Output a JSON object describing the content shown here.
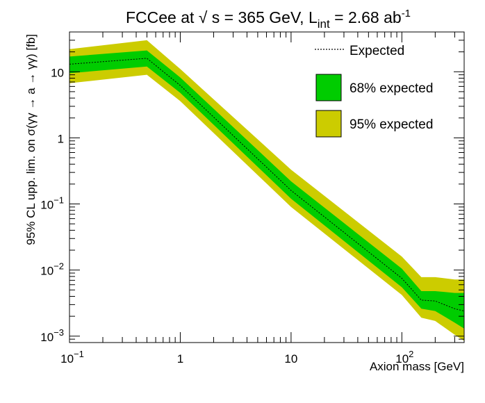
{
  "chart_data": {
    "type": "area",
    "title_main": "FCCee at √ s = 365 GeV, L",
    "title_sub": "int",
    "title_mid": " = 2.68 ab",
    "title_sup": "-1",
    "xlabel": "Axion mass [GeV]",
    "ylabel": "95% CL upp. lim. on σ(γγ → a → γγ) [fb]",
    "xscale": "log",
    "yscale": "log",
    "xlim": [
      0.1,
      365
    ],
    "ylim": [
      0.0008,
      40
    ],
    "x_ticks": [
      {
        "value": 0.1,
        "base": "10",
        "exp": "−1"
      },
      {
        "value": 1,
        "base": "1",
        "exp": ""
      },
      {
        "value": 10,
        "base": "10",
        "exp": ""
      },
      {
        "value": 100,
        "base": "10",
        "exp": "2"
      }
    ],
    "y_ticks": [
      {
        "value": 0.001,
        "base": "10",
        "exp": "−3"
      },
      {
        "value": 0.01,
        "base": "10",
        "exp": "−2"
      },
      {
        "value": 0.1,
        "base": "10",
        "exp": "−1"
      },
      {
        "value": 1,
        "base": "1",
        "exp": ""
      },
      {
        "value": 10,
        "base": "10",
        "exp": ""
      }
    ],
    "legend_position": "top-right",
    "series": [
      {
        "name": "Expected",
        "style": "dotted-line",
        "color": "#000000",
        "x": [
          0.1,
          0.5,
          1,
          10,
          100,
          150,
          200,
          300,
          365
        ],
        "y": [
          13,
          16,
          6.2,
          0.16,
          0.0075,
          0.0035,
          0.0034,
          0.0026,
          0.0024
        ]
      },
      {
        "name": "68% expected",
        "style": "band",
        "color": "#00cc00",
        "x": [
          0.1,
          0.5,
          1,
          10,
          100,
          150,
          200,
          300,
          365
        ],
        "low": [
          9.5,
          12,
          4.8,
          0.12,
          0.0055,
          0.0026,
          0.0024,
          0.0016,
          0.0013
        ],
        "high": [
          17,
          21,
          8.2,
          0.22,
          0.0105,
          0.0048,
          0.0048,
          0.0045,
          0.0045
        ]
      },
      {
        "name": "95% expected",
        "style": "band",
        "color": "#cccc00",
        "x": [
          0.1,
          0.5,
          1,
          10,
          100,
          150,
          200,
          300,
          365
        ],
        "low": [
          6.7,
          9,
          3.6,
          0.09,
          0.0042,
          0.0019,
          0.0017,
          0.00105,
          0.00085
        ],
        "high": [
          22,
          30,
          11,
          0.33,
          0.016,
          0.0078,
          0.0078,
          0.0072,
          0.0072
        ]
      }
    ]
  }
}
